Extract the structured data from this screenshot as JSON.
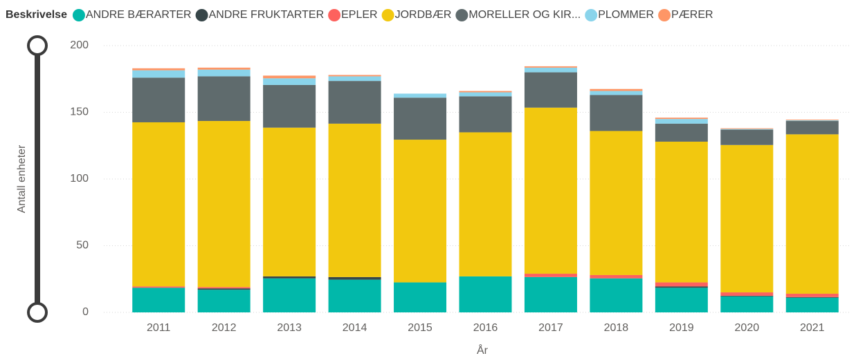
{
  "chart_data": {
    "type": "stacked_bar",
    "legend_title": "Beskrivelse",
    "x_label": "År",
    "y_label": "Antall enheter",
    "categories": [
      "2011",
      "2012",
      "2013",
      "2014",
      "2015",
      "2016",
      "2017",
      "2018",
      "2019",
      "2020",
      "2021"
    ],
    "series": [
      {
        "name": "ANDRE BÆRARTER",
        "color": "#01b8aa",
        "values": [
          18.5,
          17,
          25.5,
          24.5,
          22.5,
          27,
          26.5,
          25.5,
          18.5,
          12,
          11
        ]
      },
      {
        "name": "ANDRE FRUKTARTER",
        "color": "#374649",
        "values": [
          0,
          1,
          1.5,
          2,
          0,
          0,
          0,
          0,
          1,
          0.5,
          0.5
        ]
      },
      {
        "name": "EPLER",
        "color": "#fd625e",
        "values": [
          1,
          1,
          0,
          0,
          0,
          0,
          2.5,
          2.5,
          3,
          2.5,
          2.5
        ]
      },
      {
        "name": "JORDBÆR",
        "color": "#f2c80f",
        "values": [
          123,
          124.5,
          111.5,
          115,
          107,
          108,
          124.5,
          108,
          105.5,
          110.5,
          119.5
        ]
      },
      {
        "name": "MORELLER OG KIR...",
        "color": "#5f6b6d",
        "values": [
          33.5,
          33.5,
          32,
          32,
          31.5,
          27,
          26.5,
          27,
          13.5,
          11.5,
          10
        ]
      },
      {
        "name": "PLOMMER",
        "color": "#8ad4eb",
        "values": [
          5.5,
          5,
          5,
          3.5,
          3,
          3,
          3.5,
          3,
          3.5,
          0.5,
          0.5
        ]
      },
      {
        "name": "PÆRER",
        "color": "#fe9666",
        "values": [
          1.5,
          1.5,
          2,
          1,
          0,
          1,
          1,
          1.5,
          1,
          0.5,
          0.5
        ]
      }
    ],
    "ylim": [
      0,
      200
    ],
    "yticks": [
      0,
      50,
      100,
      150,
      200
    ],
    "grid": true,
    "legend": "top"
  }
}
